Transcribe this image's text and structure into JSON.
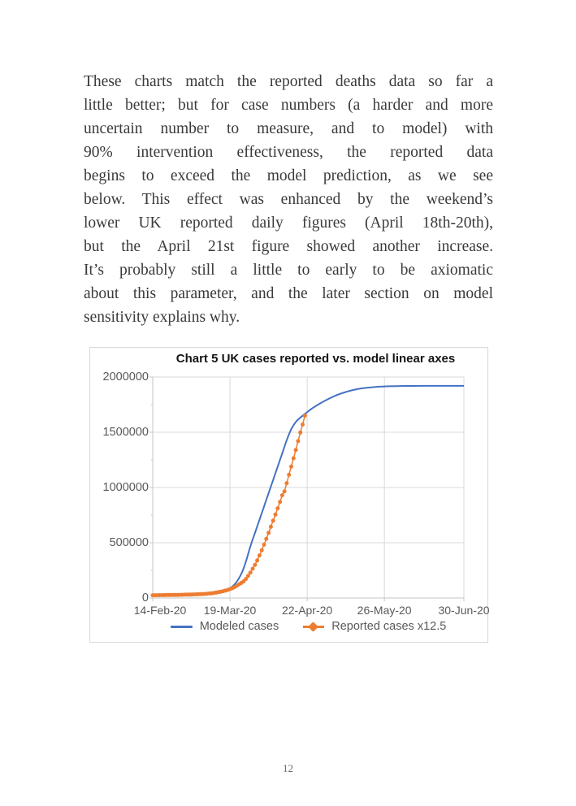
{
  "paragraph": {
    "lines": [
      "These charts match the reported deaths data so far a",
      "little better; but for case numbers (a harder and more",
      "uncertain number to measure, and to model) with",
      "90% intervention effectiveness, the reported data",
      "begins to exceed the model prediction, as we see",
      "below. This effect was enhanced by the weekend’s",
      "lower UK reported daily figures (April 18th-20th),",
      "but the April 21st figure showed another increase.",
      "It’s probably still a little to early to be axiomatic",
      "about this parameter, and the later section on model",
      "sensitivity explains why."
    ]
  },
  "page": {
    "number": "12"
  },
  "chart_data": {
    "type": "line",
    "title": "Chart 5 UK cases reported vs. model linear axes",
    "grid": true,
    "legend_position": "bottom",
    "x_axis": {
      "unit": "date",
      "range_days": [
        0,
        137
      ],
      "ticks": [
        {
          "day": 0,
          "label": "14-Feb-20"
        },
        {
          "day": 34,
          "label": "19-Mar-20"
        },
        {
          "day": 68,
          "label": "22-Apr-20"
        },
        {
          "day": 102,
          "label": "26-May-20"
        },
        {
          "day": 137,
          "label": "30-Jun-20"
        }
      ]
    },
    "y_axis": {
      "range": [
        0,
        2000000
      ],
      "ticks": [
        0,
        500000,
        1000000,
        1500000,
        2000000
      ],
      "minor_tick_step": 250000
    },
    "style": {
      "gridline_color": "#d9d9d9",
      "axis_color": "#c6c6c6",
      "tick_color": "#c6c6c6",
      "label_color": "#595959"
    },
    "series": [
      {
        "name": "Modeled cases",
        "type": "line",
        "color": "#4472C4",
        "line_width": 2,
        "points": [
          [
            0,
            22000
          ],
          [
            6,
            22000
          ],
          [
            12,
            24000
          ],
          [
            16,
            27000
          ],
          [
            20,
            31000
          ],
          [
            24,
            37000
          ],
          [
            28,
            48000
          ],
          [
            31,
            64000
          ],
          [
            33,
            80000
          ],
          [
            35,
            103000
          ],
          [
            37,
            148000
          ],
          [
            39,
            218000
          ],
          [
            41,
            328000
          ],
          [
            43,
            468000
          ],
          [
            45,
            588000
          ],
          [
            47,
            708000
          ],
          [
            49,
            828000
          ],
          [
            51,
            948000
          ],
          [
            53,
            1068000
          ],
          [
            55,
            1188000
          ],
          [
            57,
            1308000
          ],
          [
            59,
            1428000
          ],
          [
            61,
            1528000
          ],
          [
            63,
            1593000
          ],
          [
            65,
            1633000
          ],
          [
            67,
            1666000
          ],
          [
            70,
            1713000
          ],
          [
            73,
            1753000
          ],
          [
            77,
            1798000
          ],
          [
            81,
            1836000
          ],
          [
            85,
            1864000
          ],
          [
            89,
            1886000
          ],
          [
            93,
            1900000
          ],
          [
            98,
            1910000
          ],
          [
            104,
            1916000
          ],
          [
            111,
            1919000
          ],
          [
            119,
            1920000
          ],
          [
            128,
            1920000
          ],
          [
            137,
            1920000
          ]
        ]
      },
      {
        "name": "Reported cases x12.5",
        "type": "line-markers",
        "marker": "circle",
        "color": "#ED7D31",
        "start_day": 0,
        "daily_values": [
          25000,
          25000,
          25000,
          26000,
          26000,
          26000,
          27000,
          27000,
          27000,
          28000,
          28000,
          28000,
          29000,
          29000,
          30000,
          30000,
          31000,
          31000,
          32000,
          33000,
          34000,
          35000,
          36000,
          37000,
          39000,
          41000,
          43000,
          46000,
          49000,
          53000,
          57000,
          62000,
          67000,
          73000,
          80000,
          88000,
          98000,
          110000,
          124000,
          136000,
          150000,
          172000,
          200000,
          230000,
          265000,
          300000,
          340000,
          385000,
          432000,
          482000,
          535000,
          590000,
          645000,
          700000,
          755000,
          812000,
          870000,
          930000,
          965000,
          1040000,
          1115000,
          1190000,
          1265000,
          1340000,
          1420000,
          1498000,
          1570000,
          1650000
        ]
      }
    ]
  }
}
